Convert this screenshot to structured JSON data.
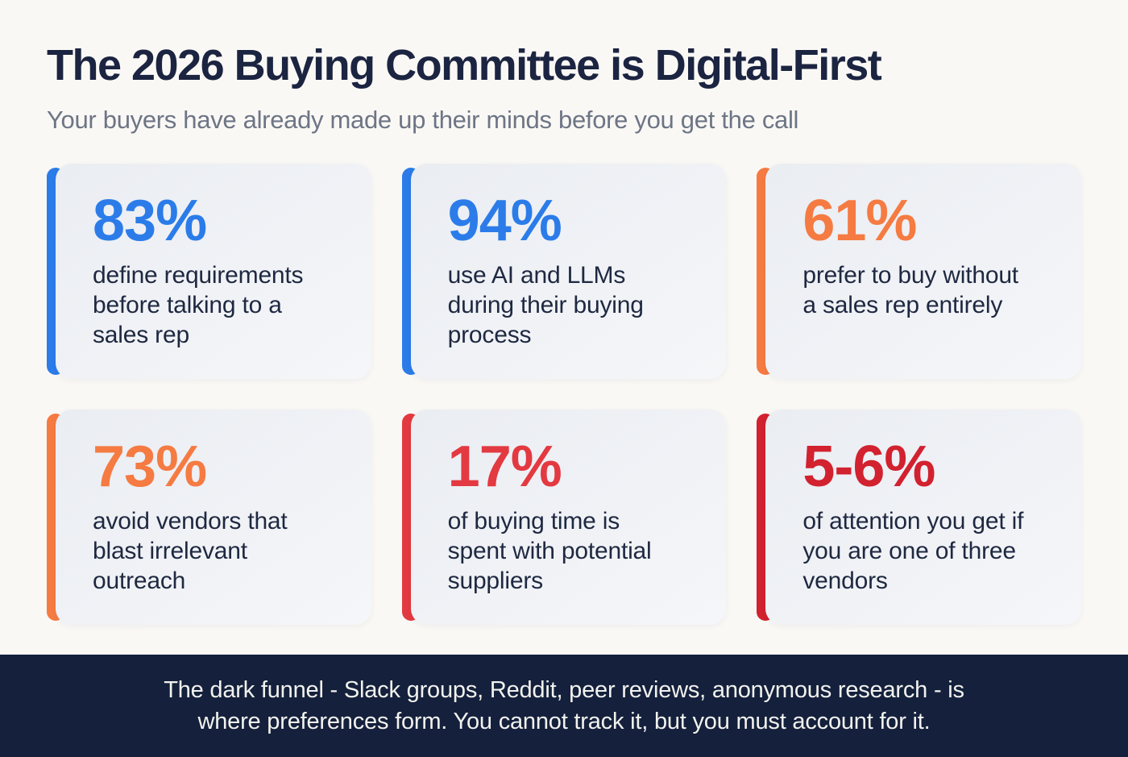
{
  "header": {
    "title": "The 2026 Buying Committee is Digital-First",
    "subtitle": "Your buyers have already made up their minds before you get the call"
  },
  "cards": [
    {
      "value": "83%",
      "label": "define requirements\nbefore talking to a\nsales rep",
      "accent": "#2b7ce9"
    },
    {
      "value": "94%",
      "label": "use AI and LLMs\nduring their buying\nprocess",
      "accent": "#2b7ce9"
    },
    {
      "value": "61%",
      "label": "prefer to buy without\na sales rep entirely",
      "accent": "#f57b42"
    },
    {
      "value": "73%",
      "label": "avoid vendors that\nblast irrelevant\noutreach",
      "accent": "#f57b42"
    },
    {
      "value": "17%",
      "label": "of buying time is\nspent with potential\nsuppliers",
      "accent": "#e33940"
    },
    {
      "value": "5-6%",
      "label": "of attention you get if\nyou are one of three\nvendors",
      "accent": "#d2212f"
    }
  ],
  "footer": {
    "text": "The dark funnel - Slack groups, Reddit, peer reviews, anonymous research - is\nwhere preferences form. You cannot track it, but you must account for it."
  },
  "colors": {
    "page_background": "#faf8f5",
    "card_background": "#eef0f4",
    "title": "#1b2440",
    "subtitle": "#6d7585",
    "body_text": "#1e2840",
    "footer_background": "#14203c",
    "footer_text": "#f2f2ee",
    "blue": "#2b7ce9",
    "orange": "#f57b42",
    "bright_red": "#e33940",
    "deep_red": "#d2212f"
  },
  "chart_data": {
    "type": "table",
    "title": "The 2026 Buying Committee is Digital-First",
    "subtitle": "Your buyers have already made up their minds before you get the call",
    "stats": [
      {
        "value": "83%",
        "numeric": 83,
        "label": "define requirements before talking to a sales rep",
        "color": "#2b7ce9"
      },
      {
        "value": "94%",
        "numeric": 94,
        "label": "use AI and LLMs during their buying process",
        "color": "#2b7ce9"
      },
      {
        "value": "61%",
        "numeric": 61,
        "label": "prefer to buy without a sales rep entirely",
        "color": "#f57b42"
      },
      {
        "value": "73%",
        "numeric": 73,
        "label": "avoid vendors that blast irrelevant outreach",
        "color": "#f57b42"
      },
      {
        "value": "17%",
        "numeric": 17,
        "label": "of buying time is spent with potential suppliers",
        "color": "#e33940"
      },
      {
        "value": "5-6%",
        "numeric_range": [
          5,
          6
        ],
        "label": "of attention you get if you are one of three vendors",
        "color": "#d2212f"
      }
    ],
    "note": "The dark funnel - Slack groups, Reddit, peer reviews, anonymous research - is where preferences form. You cannot track it, but you must account for it."
  }
}
